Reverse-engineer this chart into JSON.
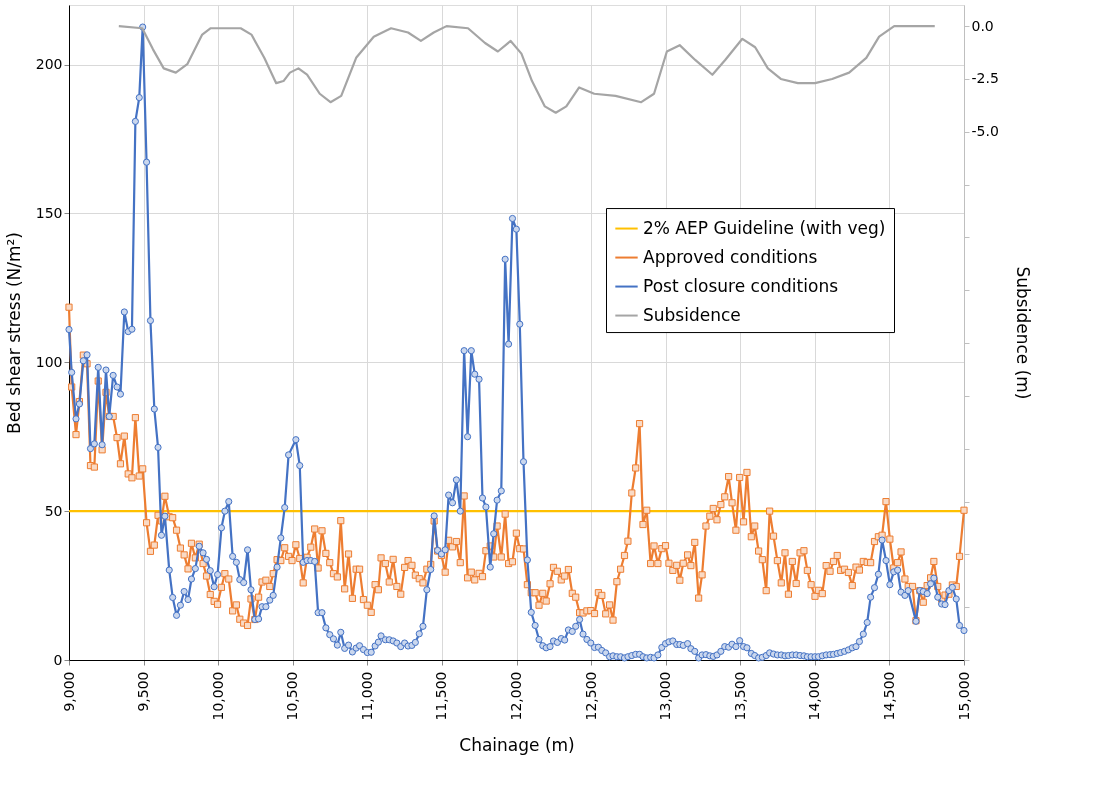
{
  "chart_data": {
    "type": "line",
    "xlabel": "Chainage (m)",
    "ylabel": "Bed shear stress (N/m²)",
    "y2label": "Subsidence (m)",
    "xlim": [
      9000,
      15000
    ],
    "xticks": [
      {
        "value": 9000,
        "label": "9,000"
      },
      {
        "value": 9500,
        "label": "9,500"
      },
      {
        "value": 10000,
        "label": "10,000"
      },
      {
        "value": 10500,
        "label": "10,500"
      },
      {
        "value": 11000,
        "label": "11,000"
      },
      {
        "value": 11500,
        "label": "11,500"
      },
      {
        "value": 12000,
        "label": "12,000"
      },
      {
        "value": 12500,
        "label": "12,500"
      },
      {
        "value": 13000,
        "label": "13,000"
      },
      {
        "value": 13500,
        "label": "13,500"
      },
      {
        "value": 14000,
        "label": "14,000"
      },
      {
        "value": 14500,
        "label": "14,500"
      },
      {
        "value": 15000,
        "label": "15,000"
      }
    ],
    "ylim": [
      0,
      220
    ],
    "yticks": [
      0,
      50,
      100,
      150,
      200
    ],
    "y2lim": [
      -30,
      1
    ],
    "y2ticks": [
      {
        "value": 0,
        "label": "0.0"
      },
      {
        "value": -2.5,
        "label": "-2.5"
      },
      {
        "value": -5,
        "label": "-5.0"
      },
      {
        "value": -7.5,
        "label": null
      },
      {
        "value": -10,
        "label": null
      },
      {
        "value": -12.5,
        "label": null
      },
      {
        "value": -15,
        "label": null
      },
      {
        "value": -17.5,
        "label": null
      },
      {
        "value": -20,
        "label": null
      },
      {
        "value": -22.5,
        "label": null
      },
      {
        "value": -25,
        "label": null
      },
      {
        "value": -27.5,
        "label": null
      },
      {
        "value": -30,
        "label": null
      }
    ],
    "grid": true,
    "legend": "right",
    "series": [
      {
        "name": "2% AEP Guideline (with veg)",
        "color": "#ffc000",
        "marker": "none",
        "x": [
          9000,
          15000
        ],
        "values": [
          50,
          50
        ]
      },
      {
        "name": "Approved conditions",
        "color": "#ed7d31",
        "marker": "square",
        "x": [
          9000,
          9018,
          9047,
          9070,
          9096,
          9121,
          9144,
          9170,
          9196,
          9222,
          9248,
          9270,
          9296,
          9322,
          9345,
          9371,
          9397,
          9422,
          9445,
          9471,
          9494,
          9520,
          9546,
          9572,
          9597,
          9620,
          9643,
          9672,
          9695,
          9721,
          9747,
          9772,
          9798,
          9821,
          9847,
          9873,
          9899,
          9922,
          9947,
          9973,
          9996,
          10022,
          10045,
          10071,
          10097,
          10122,
          10145,
          10171,
          10197,
          10220,
          10246,
          10271,
          10294,
          10320,
          10346,
          10369,
          10395,
          10420,
          10446,
          10472,
          10495,
          10521,
          10547,
          10570,
          10596,
          10621,
          10647,
          10670,
          10696,
          10722,
          10748,
          10773,
          10799,
          10822,
          10848,
          10874,
          10900,
          10925,
          10948,
          10974,
          11000,
          11026,
          11052,
          11074,
          11092,
          11121,
          11147,
          11173,
          11198,
          11224,
          11250,
          11273,
          11299,
          11322,
          11348,
          11373,
          11399,
          11425,
          11448,
          11471,
          11497,
          11522,
          11545,
          11571,
          11597,
          11623,
          11649,
          11672,
          11697,
          11720,
          11749,
          11772,
          11795,
          11824,
          11847,
          11870,
          11898,
          11924,
          11947,
          11973,
          11999,
          12022,
          12047,
          12073,
          12099,
          12125,
          12151,
          12176,
          12199,
          12225,
          12248,
          12274,
          12300,
          12323,
          12348,
          12374,
          12397,
          12423,
          12446,
          12472,
          12498,
          12523,
          12549,
          12572,
          12598,
          12624,
          12647,
          12673,
          12698,
          12724,
          12747,
          12773,
          12799,
          12825,
          12848,
          12873,
          12899,
          12922,
          12948,
          12974,
          12999,
          13022,
          13048,
          13074,
          13095,
          13118,
          13147,
          13169,
          13195,
          13221,
          13244,
          13270,
          13296,
          13319,
          13344,
          13370,
          13396,
          13422,
          13445,
          13471,
          13496,
          13522,
          13545,
          13574,
          13597,
          13623,
          13648,
          13674,
          13697,
          13723,
          13749,
          13775,
          13800,
          13823,
          13849,
          13875,
          13901,
          13927,
          13950,
          13975,
          14001,
          14024,
          14050,
          14076,
          14102,
          14125,
          14150,
          14173,
          14199,
          14225,
          14251,
          14276,
          14299,
          14325,
          14351,
          14374,
          14400,
          14426,
          14451,
          14477,
          14503,
          14529,
          14555,
          14578,
          14604,
          14626,
          14655,
          14678,
          14704,
          14727,
          14753,
          14776,
          14798,
          14824,
          14850,
          14873,
          14899,
          14922,
          14948,
          14970,
          15000
        ],
        "values": [
          118.5,
          91.7,
          75.7,
          86.8,
          102.4,
          99.5,
          65.3,
          64.8,
          93.7,
          70.6,
          89.9,
          81.8,
          81.8,
          74.7,
          65.9,
          75.2,
          62.5,
          61.2,
          81.4,
          61.8,
          64.2,
          46.1,
          36.5,
          38.6,
          48.6,
          46.7,
          55,
          48.1,
          47.8,
          43.6,
          37.6,
          35.3,
          30.6,
          39.2,
          34.3,
          38.9,
          32.4,
          28.2,
          22,
          19.7,
          18.7,
          24.4,
          29,
          27.2,
          16.5,
          18.5,
          13.7,
          12.4,
          11.6,
          20.5,
          13.6,
          21.1,
          26.2,
          26.8,
          24.7,
          29,
          33.7,
          33.4,
          37.7,
          34.8,
          33.4,
          38.7,
          34.1,
          25.9,
          34.5,
          37.9,
          44,
          30.9,
          43.4,
          35.8,
          32.7,
          29,
          27.9,
          46.8,
          23.9,
          35.6,
          20.7,
          30.5,
          30.5,
          20.3,
          18.4,
          16,
          25.3,
          23.6,
          34.3,
          32.4,
          26.2,
          33.8,
          24.7,
          22.1,
          31.1,
          33.4,
          31.8,
          28.5,
          27.3,
          25.9,
          30.5,
          32.1,
          46.7,
          36.6,
          35.1,
          29.5,
          40.2,
          38,
          39.8,
          32.7,
          55.1,
          27.6,
          29.5,
          26.9,
          29.1,
          28,
          36.7,
          38.3,
          34.6,
          45,
          34.6,
          49,
          32.4,
          33,
          42.6,
          37.4,
          37.3,
          25.3,
          22.6,
          22.6,
          18.4,
          22.4,
          19.8,
          25.6,
          31.1,
          29.8,
          26.9,
          28.2,
          30.4,
          22.4,
          21.1,
          15.9,
          15.8,
          16.5,
          16.6,
          15.6,
          22.6,
          21.7,
          15.5,
          18.5,
          13.4,
          26.3,
          30.5,
          35.1,
          39.9,
          56.1,
          64.5,
          79.4,
          45.5,
          50.3,
          32.4,
          38.3,
          32.4,
          37.4,
          38.4,
          32.5,
          30.1,
          31.8,
          26.8,
          32.5,
          35.3,
          31.7,
          39.5,
          20.8,
          28.6,
          45,
          48.3,
          50.9,
          47.1,
          52.2,
          54.8,
          61.6,
          52.8,
          43.6,
          61.3,
          46.4,
          63,
          41.4,
          45,
          36.6,
          33.7,
          23.3,
          50,
          41.6,
          33.4,
          25.9,
          36,
          22.1,
          33.1,
          25.7,
          36,
          36.7,
          30.1,
          25.3,
          21.4,
          23.4,
          22.3,
          31.7,
          29.8,
          33.1,
          35.1,
          30.1,
          30.5,
          29.4,
          25,
          31.2,
          30.2,
          33.1,
          32.8,
          32.7,
          39.8,
          41.4,
          41.9,
          53.2,
          40.6,
          30.9,
          32.7,
          36.3,
          27.2,
          24.7,
          24.7,
          13.2,
          23.3,
          19.4,
          25,
          27.6,
          33.1,
          24.7,
          20.4,
          21.8,
          22.1,
          25.2,
          24.7,
          34.8,
          50.3
        ]
      },
      {
        "name": "Post closure conditions",
        "color": "#4472c4",
        "marker": "circle",
        "x": [
          9000,
          9018,
          9047,
          9070,
          9096,
          9121,
          9144,
          9170,
          9196,
          9222,
          9248,
          9270,
          9296,
          9322,
          9345,
          9371,
          9397,
          9422,
          9445,
          9471,
          9494,
          9520,
          9546,
          9572,
          9597,
          9620,
          9643,
          9672,
          9695,
          9721,
          9747,
          9772,
          9798,
          9821,
          9847,
          9873,
          9899,
          9922,
          9947,
          9973,
          9996,
          10022,
          10045,
          10071,
          10097,
          10122,
          10145,
          10171,
          10197,
          10220,
          10246,
          10271,
          10294,
          10320,
          10346,
          10369,
          10395,
          10420,
          10446,
          10472,
          10521,
          10547,
          10570,
          10596,
          10621,
          10647,
          10670,
          10696,
          10722,
          10748,
          10773,
          10799,
          10822,
          10848,
          10874,
          10900,
          10925,
          10948,
          10974,
          11000,
          11026,
          11052,
          11074,
          11092,
          11121,
          11147,
          11173,
          11198,
          11224,
          11250,
          11273,
          11299,
          11322,
          11348,
          11373,
          11399,
          11425,
          11448,
          11471,
          11497,
          11522,
          11545,
          11571,
          11597,
          11623,
          11649,
          11672,
          11697,
          11720,
          11749,
          11772,
          11795,
          11824,
          11847,
          11870,
          11898,
          11924,
          11947,
          11973,
          11999,
          12022,
          12047,
          12073,
          12099,
          12125,
          12151,
          12176,
          12199,
          12225,
          12248,
          12274,
          12300,
          12323,
          12348,
          12374,
          12397,
          12423,
          12446,
          12472,
          12498,
          12523,
          12549,
          12572,
          12598,
          12624,
          12647,
          12673,
          12698,
          12724,
          12747,
          12773,
          12799,
          12825,
          12848,
          12873,
          12899,
          12922,
          12948,
          12974,
          12999,
          13022,
          13048,
          13074,
          13095,
          13118,
          13147,
          13169,
          13195,
          13221,
          13244,
          13270,
          13296,
          13319,
          13344,
          13370,
          13396,
          13422,
          13445,
          13471,
          13496,
          13522,
          13545,
          13574,
          13597,
          13623,
          13648,
          13674,
          13697,
          13723,
          13749,
          13775,
          13800,
          13823,
          13849,
          13875,
          13901,
          13927,
          13950,
          13975,
          14001,
          14024,
          14050,
          14076,
          14102,
          14125,
          14150,
          14173,
          14199,
          14225,
          14251,
          14276,
          14299,
          14325,
          14351,
          14374,
          14400,
          14426,
          14451,
          14477,
          14503,
          14529,
          14555,
          14578,
          14604,
          14626,
          14678,
          14704,
          14727,
          14753,
          14776,
          14798,
          14824,
          14850,
          14873,
          14899,
          14922,
          14948,
          14970,
          15000
        ],
        "values": [
          111,
          96.6,
          81,
          86,
          100.5,
          102.5,
          71,
          72.6,
          98.3,
          72.3,
          97.4,
          81.8,
          95.6,
          91.7,
          89.3,
          116.9,
          110.3,
          111.1,
          180.9,
          188.9,
          212.6,
          167.2,
          114,
          84.3,
          71.4,
          41.9,
          48.3,
          30.2,
          21,
          15,
          18.4,
          23,
          20.3,
          27.2,
          30.7,
          38.2,
          36,
          33.8,
          30,
          24.6,
          28.7,
          44.4,
          50,
          53.2,
          34.8,
          32.8,
          27,
          26,
          37,
          23.6,
          13.6,
          13.8,
          17.9,
          17.9,
          20.1,
          21.7,
          31.2,
          41,
          51.2,
          68.9,
          74,
          65.3,
          32.8,
          33.4,
          33.4,
          33.1,
          15.9,
          15.9,
          10.8,
          8.5,
          7.1,
          5,
          9.3,
          3.9,
          5,
          2.7,
          4,
          4.8,
          3.5,
          2.5,
          2.6,
          4.7,
          6,
          8.1,
          6.8,
          6.8,
          6.4,
          5.7,
          4.5,
          5.7,
          4.7,
          4.9,
          5.9,
          8.8,
          11.3,
          23.6,
          30.4,
          48.4,
          36.8,
          35.6,
          37,
          55.4,
          52.8,
          60.5,
          50,
          103.9,
          75,
          103.9,
          96,
          94.3,
          54.4,
          51.4,
          31.2,
          42.4,
          53.7,
          56.8,
          134.6,
          106.1,
          148.3,
          144.7,
          112.8,
          66.6,
          33.6,
          16,
          11.6,
          6.9,
          4.8,
          4.1,
          4.5,
          6.4,
          5.9,
          7.2,
          6.7,
          10.1,
          9.6,
          11.3,
          13.6,
          8.7,
          6.9,
          5.7,
          4.2,
          4.3,
          3.2,
          2.4,
          1.1,
          1.4,
          1.1,
          1.1,
          0.7,
          1.1,
          1.5,
          1.9,
          1.9,
          1.1,
          0.7,
          0.9,
          0.7,
          1.7,
          4.2,
          5.5,
          6.1,
          6.4,
          5.2,
          5.2,
          4.9,
          5.5,
          3.8,
          2.9,
          0.7,
          1.7,
          1.8,
          1.4,
          1.2,
          1.7,
          2.9,
          4.5,
          4.3,
          5.3,
          4.5,
          6.5,
          4.5,
          4.1,
          2.2,
          1.5,
          0.7,
          0.9,
          1.5,
          2.4,
          2,
          1.7,
          1.7,
          1.4,
          1.5,
          1.7,
          1.7,
          1.5,
          1.4,
          1.1,
          1.1,
          1.1,
          1.1,
          1.4,
          1.7,
          1.8,
          1.9,
          2.2,
          2.5,
          2.9,
          3.4,
          4.1,
          4.5,
          6.2,
          8.7,
          12.6,
          21.1,
          24.3,
          28.8,
          40.3,
          33.4,
          25.3,
          29.6,
          30.2,
          22.8,
          21.7,
          23.3,
          13,
          23.3,
          23,
          22.3,
          25.6,
          27.5,
          21.1,
          18.8,
          18.6,
          23.3,
          24.4,
          20.5,
          11.6,
          9.9
        ]
      },
      {
        "name": "Subsidence",
        "color": "#a5a5a5",
        "marker": "none",
        "axis": "y2",
        "x": [
          9334,
          9491,
          9563,
          9635,
          9716,
          9793,
          9893,
          9950,
          10151,
          10223,
          10309,
          10389,
          10438,
          10481,
          10538,
          10596,
          10681,
          10753,
          10825,
          10925,
          11043,
          11159,
          11273,
          11359,
          11445,
          11531,
          11675,
          11789,
          11875,
          11961,
          12033,
          12104,
          12190,
          12263,
          12334,
          12420,
          12521,
          12664,
          12836,
          12922,
          13008,
          13094,
          13198,
          13313,
          13399,
          13514,
          13600,
          13685,
          13772,
          13886,
          14001,
          14116,
          14230,
          14345,
          14431,
          14532,
          14804
        ],
        "values": [
          0,
          -0.1,
          -1.1,
          -2,
          -2.2,
          -1.8,
          -0.4,
          -0.1,
          -0.1,
          -0.4,
          -1.5,
          -2.7,
          -2.6,
          -2.2,
          -2,
          -2.3,
          -3.2,
          -3.6,
          -3.3,
          -1.5,
          -0.5,
          -0.1,
          -0.3,
          -0.7,
          -0.3,
          0,
          -0.1,
          -0.8,
          -1.2,
          -0.7,
          -1.3,
          -2.6,
          -3.8,
          -4.1,
          -3.8,
          -2.9,
          -3.2,
          -3.3,
          -3.6,
          -3.2,
          -1.2,
          -0.9,
          -1.6,
          -2.3,
          -1.6,
          -0.6,
          -1,
          -2,
          -2.5,
          -2.7,
          -2.7,
          -2.5,
          -2.2,
          -1.5,
          -0.5,
          0,
          0
        ]
      }
    ]
  }
}
